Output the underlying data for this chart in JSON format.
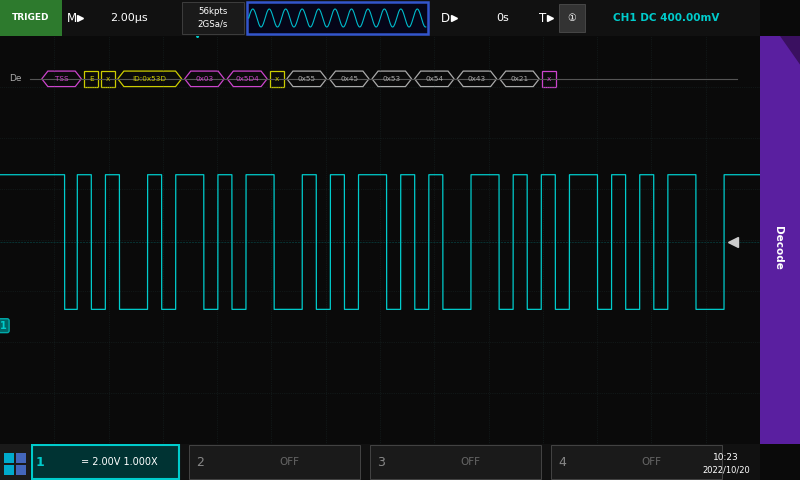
{
  "bg_color": "#0a0a0a",
  "grid_color": "#1e3030",
  "signal_color": "#00cccc",
  "top_bar": {
    "triged_bg": "#2d7a2d",
    "triged_text": "TRIGED",
    "timebase": "2.00μs",
    "memory_line1": "56kpts",
    "memory_line2": "2GSa/s",
    "delay": "0s",
    "ch1_info": "CH1 DC 400.00mV"
  },
  "bottom_bar": {
    "ch1_info": "= 2.00V 1.000X",
    "time": "10:23",
    "date": "2022/10/20"
  },
  "decode_tokens": [
    {
      "text": "TSS",
      "color": "#cc44cc",
      "style": "hex"
    },
    {
      "text": "E",
      "color": "#cccc00",
      "style": "small"
    },
    {
      "text": "x",
      "color": "#cccc00",
      "style": "small"
    },
    {
      "text": "ID:0x53D",
      "color": "#cccc00",
      "style": "hex"
    },
    {
      "text": "0x03",
      "color": "#cc44cc",
      "style": "hex"
    },
    {
      "text": "0x5D4",
      "color": "#cc44cc",
      "style": "hex"
    },
    {
      "text": "x",
      "color": "#cccc00",
      "style": "small"
    },
    {
      "text": "0x55",
      "color": "#aaaaaa",
      "style": "hex"
    },
    {
      "text": "0x45",
      "color": "#aaaaaa",
      "style": "hex"
    },
    {
      "text": "0x53",
      "color": "#aaaaaa",
      "style": "hex"
    },
    {
      "text": "0x54",
      "color": "#aaaaaa",
      "style": "hex"
    },
    {
      "text": "0x43",
      "color": "#aaaaaa",
      "style": "hex"
    },
    {
      "text": "0x21",
      "color": "#aaaaaa",
      "style": "hex"
    },
    {
      "text": "x",
      "color": "#cc44cc",
      "style": "small"
    }
  ]
}
